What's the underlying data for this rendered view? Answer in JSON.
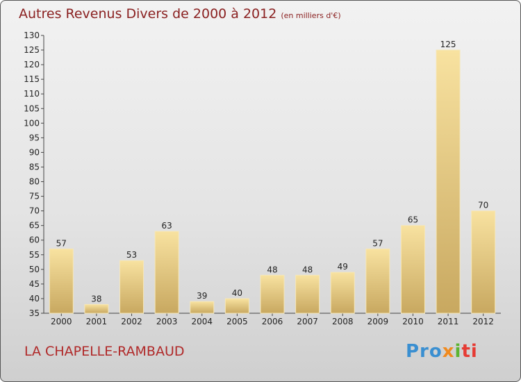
{
  "title": {
    "main": "Autres Revenus Divers de 2000 à 2012",
    "sub": "(en milliers d'€)"
  },
  "commune": "LA CHAPELLE-RAMBAUD",
  "logo_text": "Proxiti",
  "colors": {
    "bar_fill_light": "#f8e2a0",
    "bar_fill_dark": "#c8a860",
    "title": "#8a2020",
    "commune": "#b02828"
  },
  "chart_data": {
    "type": "bar",
    "categories": [
      "2000",
      "2001",
      "2002",
      "2003",
      "2004",
      "2005",
      "2006",
      "2007",
      "2008",
      "2009",
      "2010",
      "2011",
      "2012"
    ],
    "values": [
      57,
      38,
      53,
      63,
      39,
      40,
      48,
      48,
      49,
      57,
      65,
      125,
      70
    ],
    "ylim": [
      35,
      130
    ],
    "yticks": [
      35,
      40,
      45,
      50,
      55,
      60,
      65,
      70,
      75,
      80,
      85,
      90,
      95,
      100,
      105,
      110,
      115,
      120,
      125,
      130
    ],
    "grid": false,
    "data_labels": true
  }
}
